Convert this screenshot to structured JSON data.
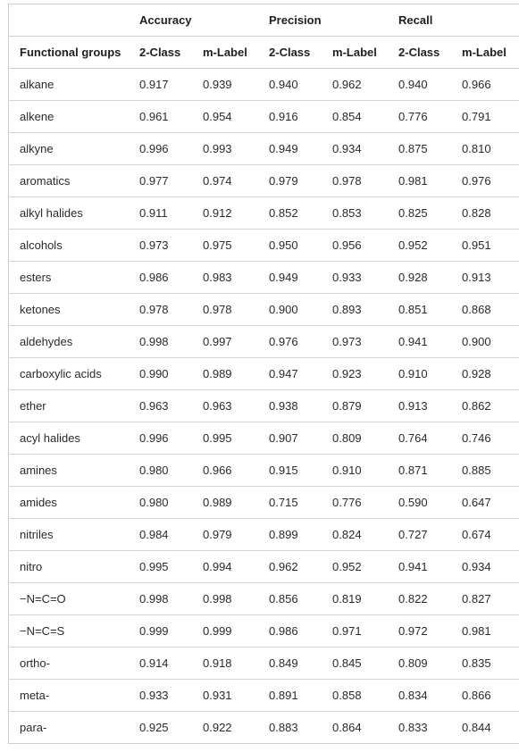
{
  "table": {
    "group_headers": [
      "",
      "Accuracy",
      "Precision",
      "Recall"
    ],
    "column_headers": [
      "Functional groups",
      "2-Class",
      "m-Label",
      "2-Class",
      "m-Label",
      "2-Class",
      "m-Label"
    ],
    "rows": [
      [
        "alkane",
        "0.917",
        "0.939",
        "0.940",
        "0.962",
        "0.940",
        "0.966"
      ],
      [
        "alkene",
        "0.961",
        "0.954",
        "0.916",
        "0.854",
        "0.776",
        "0.791"
      ],
      [
        "alkyne",
        "0.996",
        "0.993",
        "0.949",
        "0.934",
        "0.875",
        "0.810"
      ],
      [
        "aromatics",
        "0.977",
        "0.974",
        "0.979",
        "0.978",
        "0.981",
        "0.976"
      ],
      [
        "alkyl halides",
        "0.911",
        "0.912",
        "0.852",
        "0.853",
        "0.825",
        "0.828"
      ],
      [
        "alcohols",
        "0.973",
        "0.975",
        "0.950",
        "0.956",
        "0.952",
        "0.951"
      ],
      [
        "esters",
        "0.986",
        "0.983",
        "0.949",
        "0.933",
        "0.928",
        "0.913"
      ],
      [
        "ketones",
        "0.978",
        "0.978",
        "0.900",
        "0.893",
        "0.851",
        "0.868"
      ],
      [
        "aldehydes",
        "0.998",
        "0.997",
        "0.976",
        "0.973",
        "0.941",
        "0.900"
      ],
      [
        "carboxylic acids",
        "0.990",
        "0.989",
        "0.947",
        "0.923",
        "0.910",
        "0.928"
      ],
      [
        "ether",
        "0.963",
        "0.963",
        "0.938",
        "0.879",
        "0.913",
        "0.862"
      ],
      [
        "acyl halides",
        "0.996",
        "0.995",
        "0.907",
        "0.809",
        "0.764",
        "0.746"
      ],
      [
        "amines",
        "0.980",
        "0.966",
        "0.915",
        "0.910",
        "0.871",
        "0.885"
      ],
      [
        "amides",
        "0.980",
        "0.989",
        "0.715",
        "0.776",
        "0.590",
        "0.647"
      ],
      [
        "nitriles",
        "0.984",
        "0.979",
        "0.899",
        "0.824",
        "0.727",
        "0.674"
      ],
      [
        "nitro",
        "0.995",
        "0.994",
        "0.962",
        "0.952",
        "0.941",
        "0.934"
      ],
      [
        "−N=C=O",
        "0.998",
        "0.998",
        "0.856",
        "0.819",
        "0.822",
        "0.827"
      ],
      [
        "−N=C=S",
        "0.999",
        "0.999",
        "0.986",
        "0.971",
        "0.972",
        "0.981"
      ],
      [
        "ortho-",
        "0.914",
        "0.918",
        "0.849",
        "0.845",
        "0.809",
        "0.835"
      ],
      [
        "meta-",
        "0.933",
        "0.931",
        "0.891",
        "0.858",
        "0.834",
        "0.866"
      ],
      [
        "para-",
        "0.925",
        "0.922",
        "0.883",
        "0.864",
        "0.833",
        "0.844"
      ]
    ]
  }
}
